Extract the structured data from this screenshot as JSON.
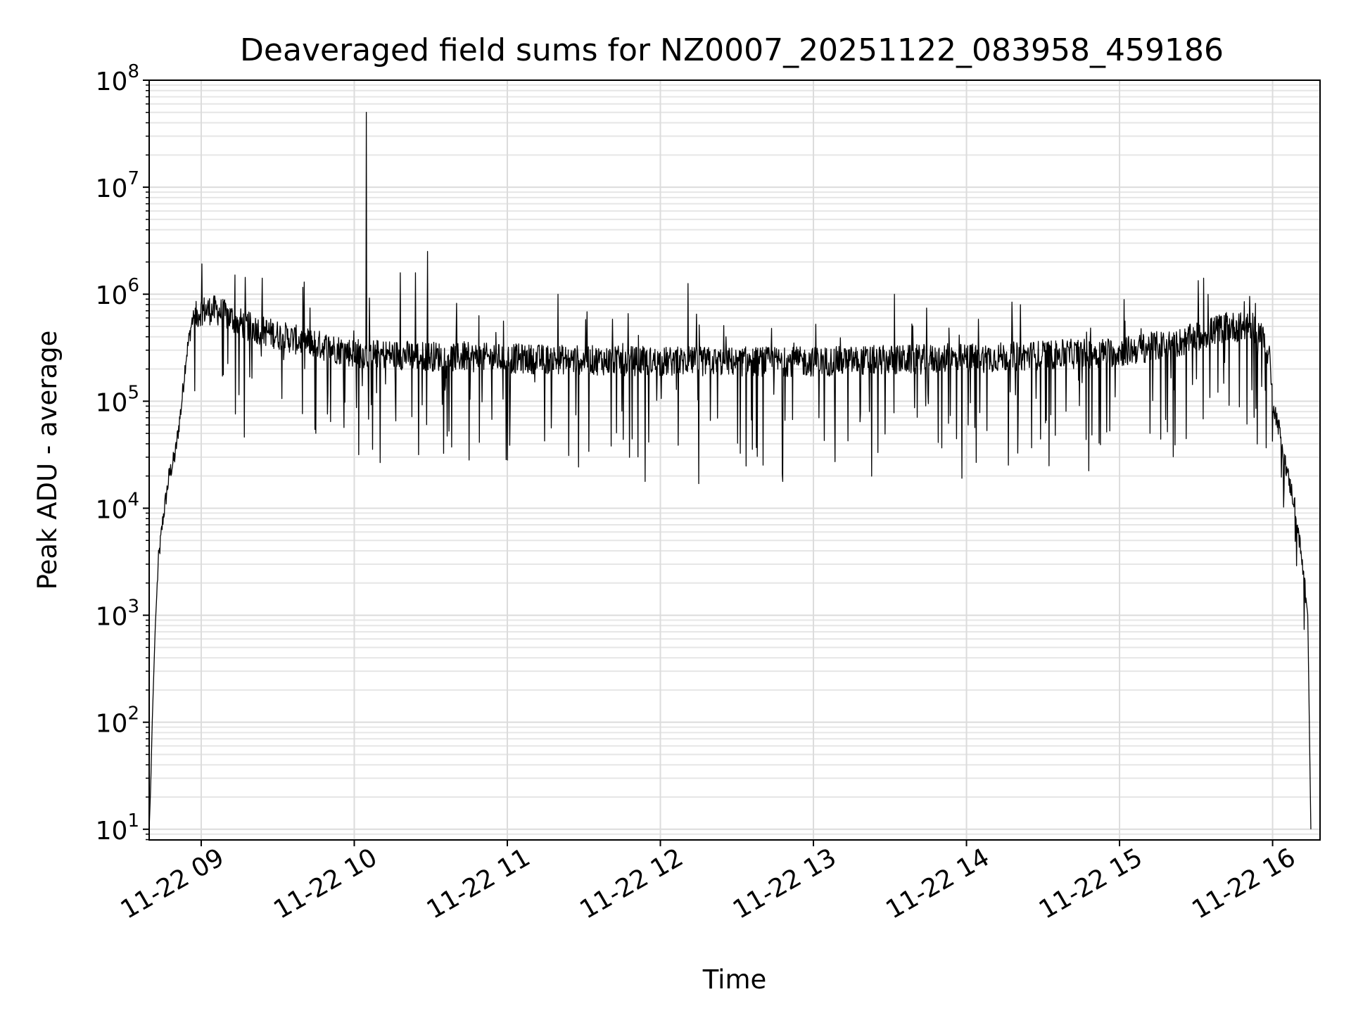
{
  "chart_data": {
    "type": "line",
    "title": "Deaveraged field sums for NZ0007_20251122_083958_459186",
    "xlabel": "Time",
    "ylabel": "Peak ADU - average",
    "x_units": "hours",
    "xlim": [
      8.66,
      16.31
    ],
    "y_scale": "log",
    "ylim_exponents": [
      0.9,
      8
    ],
    "grid": true,
    "x_ticks": [
      {
        "value": 9,
        "label": "11-22 09"
      },
      {
        "value": 10,
        "label": "11-22 10"
      },
      {
        "value": 11,
        "label": "11-22 11"
      },
      {
        "value": 12,
        "label": "11-22 12"
      },
      {
        "value": 13,
        "label": "11-22 13"
      },
      {
        "value": 14,
        "label": "11-22 14"
      },
      {
        "value": 15,
        "label": "11-22 15"
      },
      {
        "value": 16,
        "label": "11-22 16"
      }
    ],
    "y_ticks": [
      {
        "exp": 1,
        "base": "10",
        "sup": "1"
      },
      {
        "exp": 2,
        "base": "10",
        "sup": "2"
      },
      {
        "exp": 3,
        "base": "10",
        "sup": "3"
      },
      {
        "exp": 4,
        "base": "10",
        "sup": "4"
      },
      {
        "exp": 5,
        "base": "10",
        "sup": "5"
      },
      {
        "exp": 6,
        "base": "10",
        "sup": "6"
      },
      {
        "exp": 7,
        "base": "10",
        "sup": "7"
      },
      {
        "exp": 8,
        "base": "10",
        "sup": "8"
      }
    ],
    "series": [
      {
        "name": "Peak ADU - average",
        "color": "#000000",
        "envelope_points": [
          [
            8.66,
            1
          ],
          [
            8.67,
            1.4
          ],
          [
            8.68,
            2.0
          ],
          [
            8.7,
            2.9
          ],
          [
            8.72,
            3.5
          ],
          [
            8.75,
            3.9
          ],
          [
            8.79,
            4.3
          ],
          [
            8.83,
            4.5
          ],
          [
            8.87,
            4.95
          ],
          [
            8.9,
            5.4
          ],
          [
            8.94,
            5.75
          ],
          [
            9.0,
            5.85
          ],
          [
            9.1,
            5.85
          ],
          [
            9.3,
            5.7
          ],
          [
            9.6,
            5.58
          ],
          [
            10.0,
            5.45
          ],
          [
            10.5,
            5.42
          ],
          [
            11.0,
            5.4
          ],
          [
            12.0,
            5.37
          ],
          [
            13.0,
            5.37
          ],
          [
            14.0,
            5.4
          ],
          [
            15.0,
            5.46
          ],
          [
            15.4,
            5.55
          ],
          [
            15.7,
            5.7
          ],
          [
            15.9,
            5.68
          ],
          [
            15.98,
            5.45
          ],
          [
            16.0,
            5.0
          ],
          [
            16.05,
            4.7
          ],
          [
            16.1,
            4.3
          ],
          [
            16.15,
            4.0
          ],
          [
            16.2,
            3.4
          ],
          [
            16.23,
            3.0
          ],
          [
            16.24,
            2.0
          ],
          [
            16.25,
            1.0
          ]
        ],
        "spikes": [
          [
            10.08,
            7.7
          ],
          [
            10.48,
            6.4
          ],
          [
            10.4,
            6.2
          ],
          [
            10.3,
            6.2
          ],
          [
            9.22,
            6.18
          ],
          [
            9.4,
            6.15
          ],
          [
            12.18,
            6.1
          ],
          [
            15.55,
            6.15
          ],
          [
            13.53,
            6.0
          ],
          [
            11.33,
            6.0
          ],
          [
            15.03,
            5.95
          ],
          [
            15.85,
            5.98
          ]
        ],
        "dips": [
          [
            9.75,
            4.7
          ],
          [
            10.03,
            4.5
          ],
          [
            10.12,
            4.55
          ],
          [
            10.42,
            4.5
          ],
          [
            11.0,
            4.45
          ],
          [
            11.9,
            4.25
          ],
          [
            12.25,
            4.23
          ],
          [
            12.8,
            4.25
          ],
          [
            13.38,
            4.3
          ],
          [
            13.97,
            4.28
          ],
          [
            14.8,
            4.35
          ],
          [
            15.9,
            4.6
          ],
          [
            15.2,
            4.7
          ],
          [
            10.75,
            4.45
          ],
          [
            12.6,
            4.55
          ]
        ]
      }
    ]
  }
}
